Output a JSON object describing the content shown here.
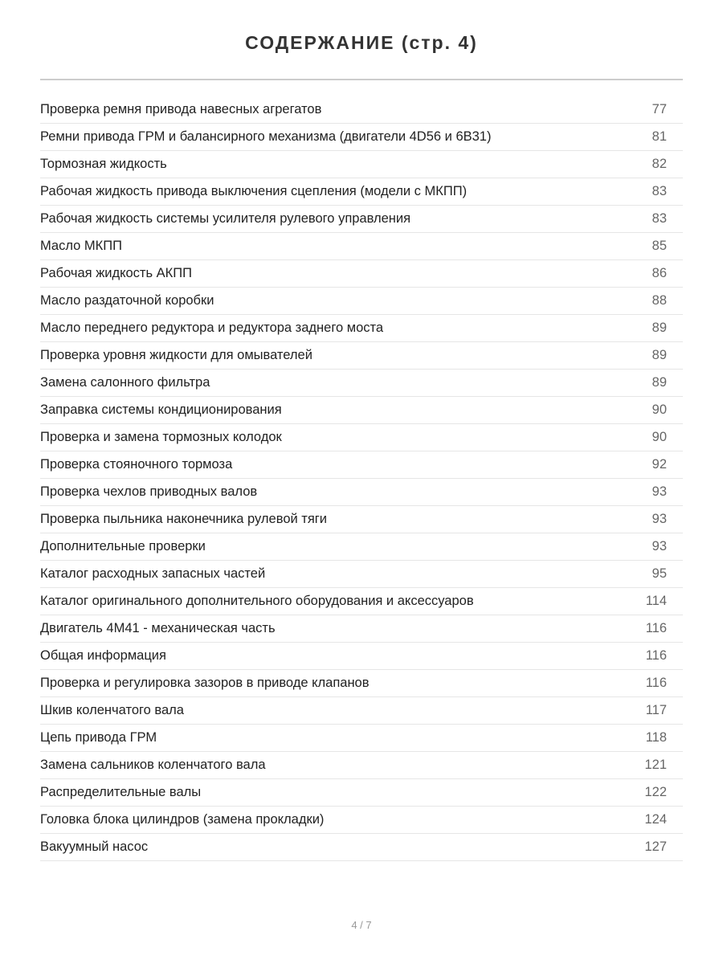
{
  "title": "СОДЕРЖАНИЕ (стр. 4)",
  "entries": [
    {
      "title": "Проверка ремня привода навесных агрегатов",
      "page": "77"
    },
    {
      "title": "Ремни привода ГРМ и балансирного механизма (двигатели 4D56 и 6B31)",
      "page": "81"
    },
    {
      "title": "Тормозная жидкость",
      "page": "82"
    },
    {
      "title": "Рабочая жидкость привода выключения сцепления (модели с МКПП)",
      "page": "83"
    },
    {
      "title": "Рабочая жидкость системы усилителя рулевого управления",
      "page": "83"
    },
    {
      "title": "Масло МКПП",
      "page": "85"
    },
    {
      "title": "Рабочая жидкость АКПП",
      "page": "86"
    },
    {
      "title": "Масло раздаточной коробки",
      "page": "88"
    },
    {
      "title": "Масло переднего редуктора и редуктора заднего моста",
      "page": "89"
    },
    {
      "title": "Проверка уровня жидкости для омывателей",
      "page": "89"
    },
    {
      "title": "Замена салонного фильтра",
      "page": "89"
    },
    {
      "title": "Заправка системы кондиционирования",
      "page": "90"
    },
    {
      "title": "Проверка и замена тормозных колодок",
      "page": "90"
    },
    {
      "title": "Проверка стояночного тормоза",
      "page": "92"
    },
    {
      "title": "Проверка чехлов приводных валов",
      "page": "93"
    },
    {
      "title": "Проверка пыльника наконечника рулевой тяги",
      "page": "93"
    },
    {
      "title": "Дополнительные проверки",
      "page": "93"
    },
    {
      "title": "Каталог расходных запасных частей",
      "page": "95"
    },
    {
      "title": "Каталог оригинального дополнительного оборудования и аксессуаров",
      "page": "114"
    },
    {
      "title": "Двигатель 4M41 - механическая часть",
      "page": "116"
    },
    {
      "title": "Общая информация",
      "page": "116"
    },
    {
      "title": "Проверка и регулировка зазоров в приводе клапанов",
      "page": "116"
    },
    {
      "title": "Шкив коленчатого вала",
      "page": "117"
    },
    {
      "title": "Цепь привода ГРМ",
      "page": "118"
    },
    {
      "title": "Замена сальников коленчатого вала",
      "page": "121"
    },
    {
      "title": "Распределительные валы",
      "page": "122"
    },
    {
      "title": "Головка блока цилиндров (замена прокладки)",
      "page": "124"
    },
    {
      "title": "Вакуумный насос",
      "page": "127"
    }
  ],
  "footer": "4 / 7"
}
